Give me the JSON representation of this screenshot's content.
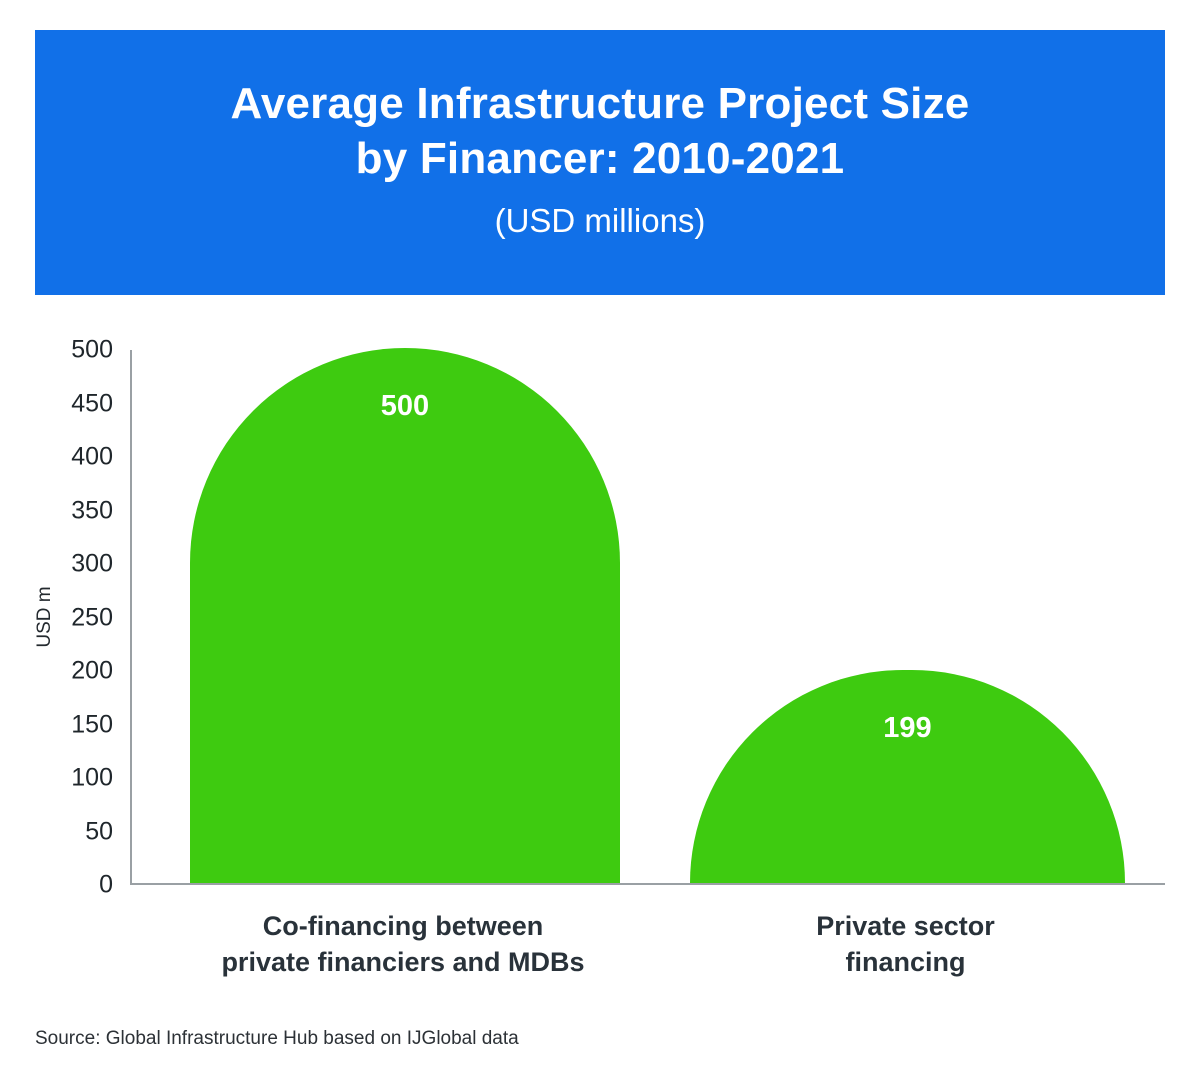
{
  "header": {
    "title_line1": "Average Infrastructure Project Size",
    "title_line2": "by Financer: 2010-2021",
    "subtitle": "(USD millions)"
  },
  "chart_data": {
    "type": "bar",
    "title": "Average Infrastructure Project Size by Financer: 2010-2021",
    "subtitle": "(USD millions)",
    "categories": [
      "Co-financing between private financiers and MDBs",
      "Private sector financing"
    ],
    "categories_lines": [
      [
        "Co-financing between",
        "private financiers and MDBs"
      ],
      [
        "Private sector",
        "financing"
      ]
    ],
    "values": [
      500,
      199
    ],
    "xlabel": "",
    "ylabel": "USD m",
    "ylim": [
      0,
      500
    ],
    "yticks": [
      0,
      50,
      100,
      150,
      200,
      250,
      300,
      350,
      400,
      450,
      500
    ],
    "grid": false,
    "legend": false
  },
  "colors": {
    "header_bg": "#1170e8",
    "bar_green": "#3ecb10",
    "bar_label": "#ffffff"
  },
  "footer": {
    "source": "Source: Global Infrastructure Hub based on IJGlobal data"
  }
}
